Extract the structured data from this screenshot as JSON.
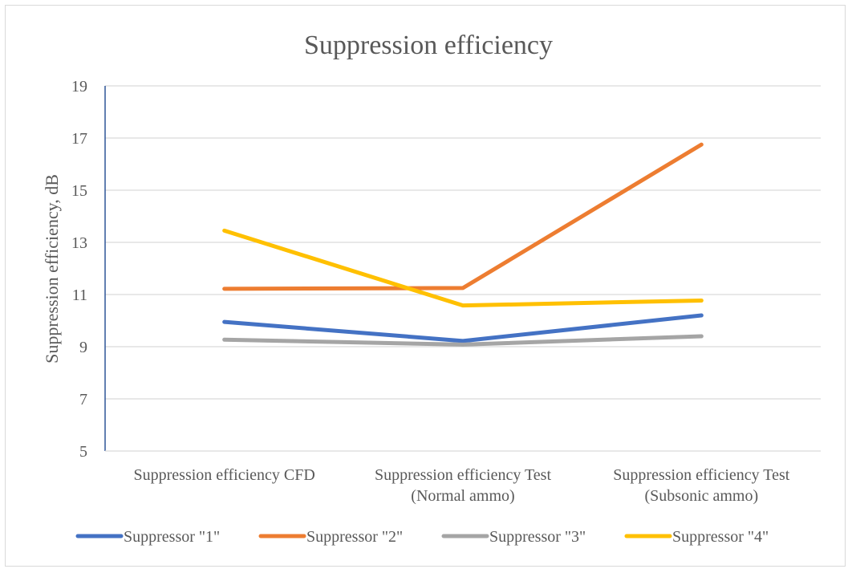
{
  "chart_data": {
    "type": "line",
    "title": "Suppression efficiency",
    "xlabel": "",
    "ylabel": "Suppression efficiency, dB",
    "ylim": [
      5,
      19
    ],
    "yticks": [
      "5",
      "7",
      "9",
      "11",
      "13",
      "15",
      "17",
      "19"
    ],
    "categories": [
      [
        "Suppression efficiency CFD"
      ],
      [
        "Suppression efficiency Test",
        "(Normal ammo)"
      ],
      [
        "Suppression efficiency Test",
        "(Subsonic ammo)"
      ]
    ],
    "series": [
      {
        "name": "Suppressor \"1\"",
        "color": "#4472c4",
        "values": [
          9.95,
          9.22,
          10.2
        ]
      },
      {
        "name": "Suppressor \"2\"",
        "color": "#ed7d31",
        "values": [
          11.22,
          11.25,
          16.75
        ]
      },
      {
        "name": "Suppressor \"3\"",
        "color": "#a5a5a5",
        "values": [
          9.27,
          9.08,
          9.4
        ]
      },
      {
        "name": "Suppressor \"4\"",
        "color": "#ffc000",
        "values": [
          13.45,
          10.58,
          10.77
        ]
      }
    ],
    "grid": true,
    "legend": "bottom"
  }
}
